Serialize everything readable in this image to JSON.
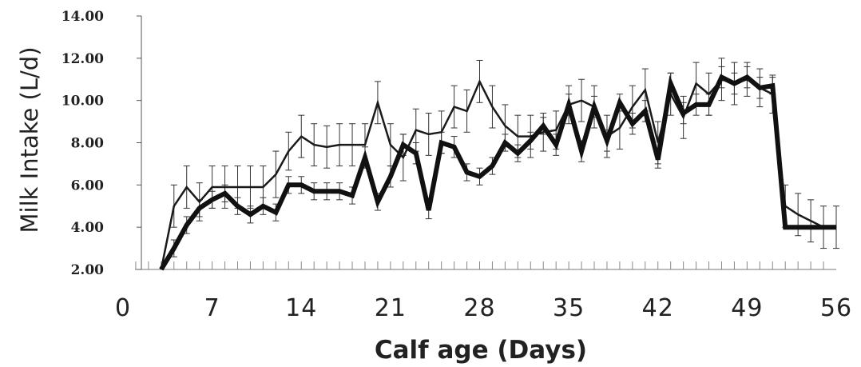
{
  "chart_data": {
    "type": "line",
    "title": "",
    "xlabel": "Calf age (Days)",
    "ylabel": "Milk Intake (L/d)",
    "xlim": [
      0,
      56
    ],
    "ylim": [
      2,
      14
    ],
    "x_ticks": [
      "0",
      "7",
      "14",
      "21",
      "28",
      "35",
      "42",
      "49",
      "56"
    ],
    "y_ticks": [
      "2.00",
      "4.00",
      "6.00",
      "8.00",
      "10.00",
      "12.00",
      "14.00"
    ],
    "grid": false,
    "legend": "none",
    "x": [
      3,
      4,
      5,
      6,
      7,
      8,
      9,
      10,
      11,
      12,
      13,
      14,
      15,
      16,
      17,
      18,
      19,
      20,
      21,
      22,
      23,
      24,
      25,
      26,
      27,
      28,
      29,
      30,
      31,
      32,
      33,
      34,
      35,
      36,
      37,
      38,
      39,
      40,
      41,
      42,
      43,
      44,
      45,
      46,
      47,
      48,
      49,
      50,
      51,
      52,
      53,
      54,
      55,
      56
    ],
    "series": [
      {
        "style": "thin",
        "color": "#1a1a1a",
        "values": [
          2.0,
          5.0,
          5.9,
          5.2,
          5.9,
          5.9,
          5.9,
          5.9,
          5.9,
          6.5,
          7.6,
          8.3,
          7.9,
          7.8,
          7.9,
          7.9,
          7.9,
          9.9,
          7.9,
          7.3,
          8.6,
          8.4,
          8.5,
          9.7,
          9.5,
          10.9,
          9.7,
          8.8,
          8.3,
          8.3,
          8.5,
          8.6,
          9.8,
          10.0,
          9.7,
          8.3,
          8.7,
          9.7,
          10.5,
          8.0,
          10.3,
          9.2,
          10.8,
          10.3,
          11.0,
          10.8,
          11.0,
          10.6,
          10.3,
          5.0,
          4.6,
          4.3,
          4.0,
          4.0
        ],
        "errors": [
          0.0,
          1.0,
          1.0,
          0.9,
          1.0,
          1.0,
          1.0,
          1.0,
          1.0,
          1.1,
          0.9,
          1.0,
          1.0,
          1.0,
          1.0,
          1.0,
          1.0,
          1.0,
          1.0,
          1.1,
          1.0,
          1.0,
          1.0,
          1.0,
          1.0,
          1.0,
          1.0,
          1.0,
          1.0,
          1.0,
          0.9,
          0.9,
          0.9,
          1.0,
          1.0,
          1.0,
          1.0,
          1.0,
          1.0,
          1.0,
          1.0,
          1.0,
          1.0,
          1.0,
          1.0,
          1.0,
          0.8,
          0.9,
          0.9,
          1.0,
          1.0,
          1.0,
          1.0,
          1.0
        ]
      },
      {
        "style": "thick",
        "color": "#111111",
        "values": [
          2.0,
          3.0,
          4.1,
          4.9,
          5.3,
          5.6,
          5.0,
          4.6,
          5.0,
          4.7,
          6.0,
          6.0,
          5.7,
          5.7,
          5.7,
          5.5,
          7.3,
          5.2,
          6.4,
          7.9,
          7.5,
          4.8,
          8.0,
          7.8,
          6.6,
          6.4,
          6.9,
          8.0,
          7.5,
          8.1,
          8.8,
          7.9,
          9.8,
          7.6,
          9.7,
          8.1,
          9.9,
          8.9,
          9.5,
          7.2,
          10.8,
          9.4,
          9.8,
          9.8,
          11.1,
          10.8,
          11.1,
          10.6,
          10.7,
          4.0,
          4.0,
          4.0,
          4.0,
          4.0
        ],
        "errors": [
          0.0,
          0.4,
          0.4,
          0.4,
          0.4,
          0.4,
          0.4,
          0.4,
          0.4,
          0.4,
          0.4,
          0.4,
          0.4,
          0.4,
          0.4,
          0.4,
          0.5,
          0.4,
          0.5,
          0.5,
          0.5,
          0.4,
          0.5,
          0.5,
          0.4,
          0.4,
          0.4,
          0.4,
          0.4,
          0.4,
          0.4,
          0.5,
          0.5,
          0.5,
          0.5,
          0.5,
          0.4,
          0.5,
          0.5,
          0.4,
          0.5,
          0.5,
          0.5,
          0.5,
          0.5,
          0.5,
          0.5,
          0.5,
          0.4,
          0.0,
          0.0,
          0.0,
          0.0,
          0.0
        ]
      }
    ]
  }
}
